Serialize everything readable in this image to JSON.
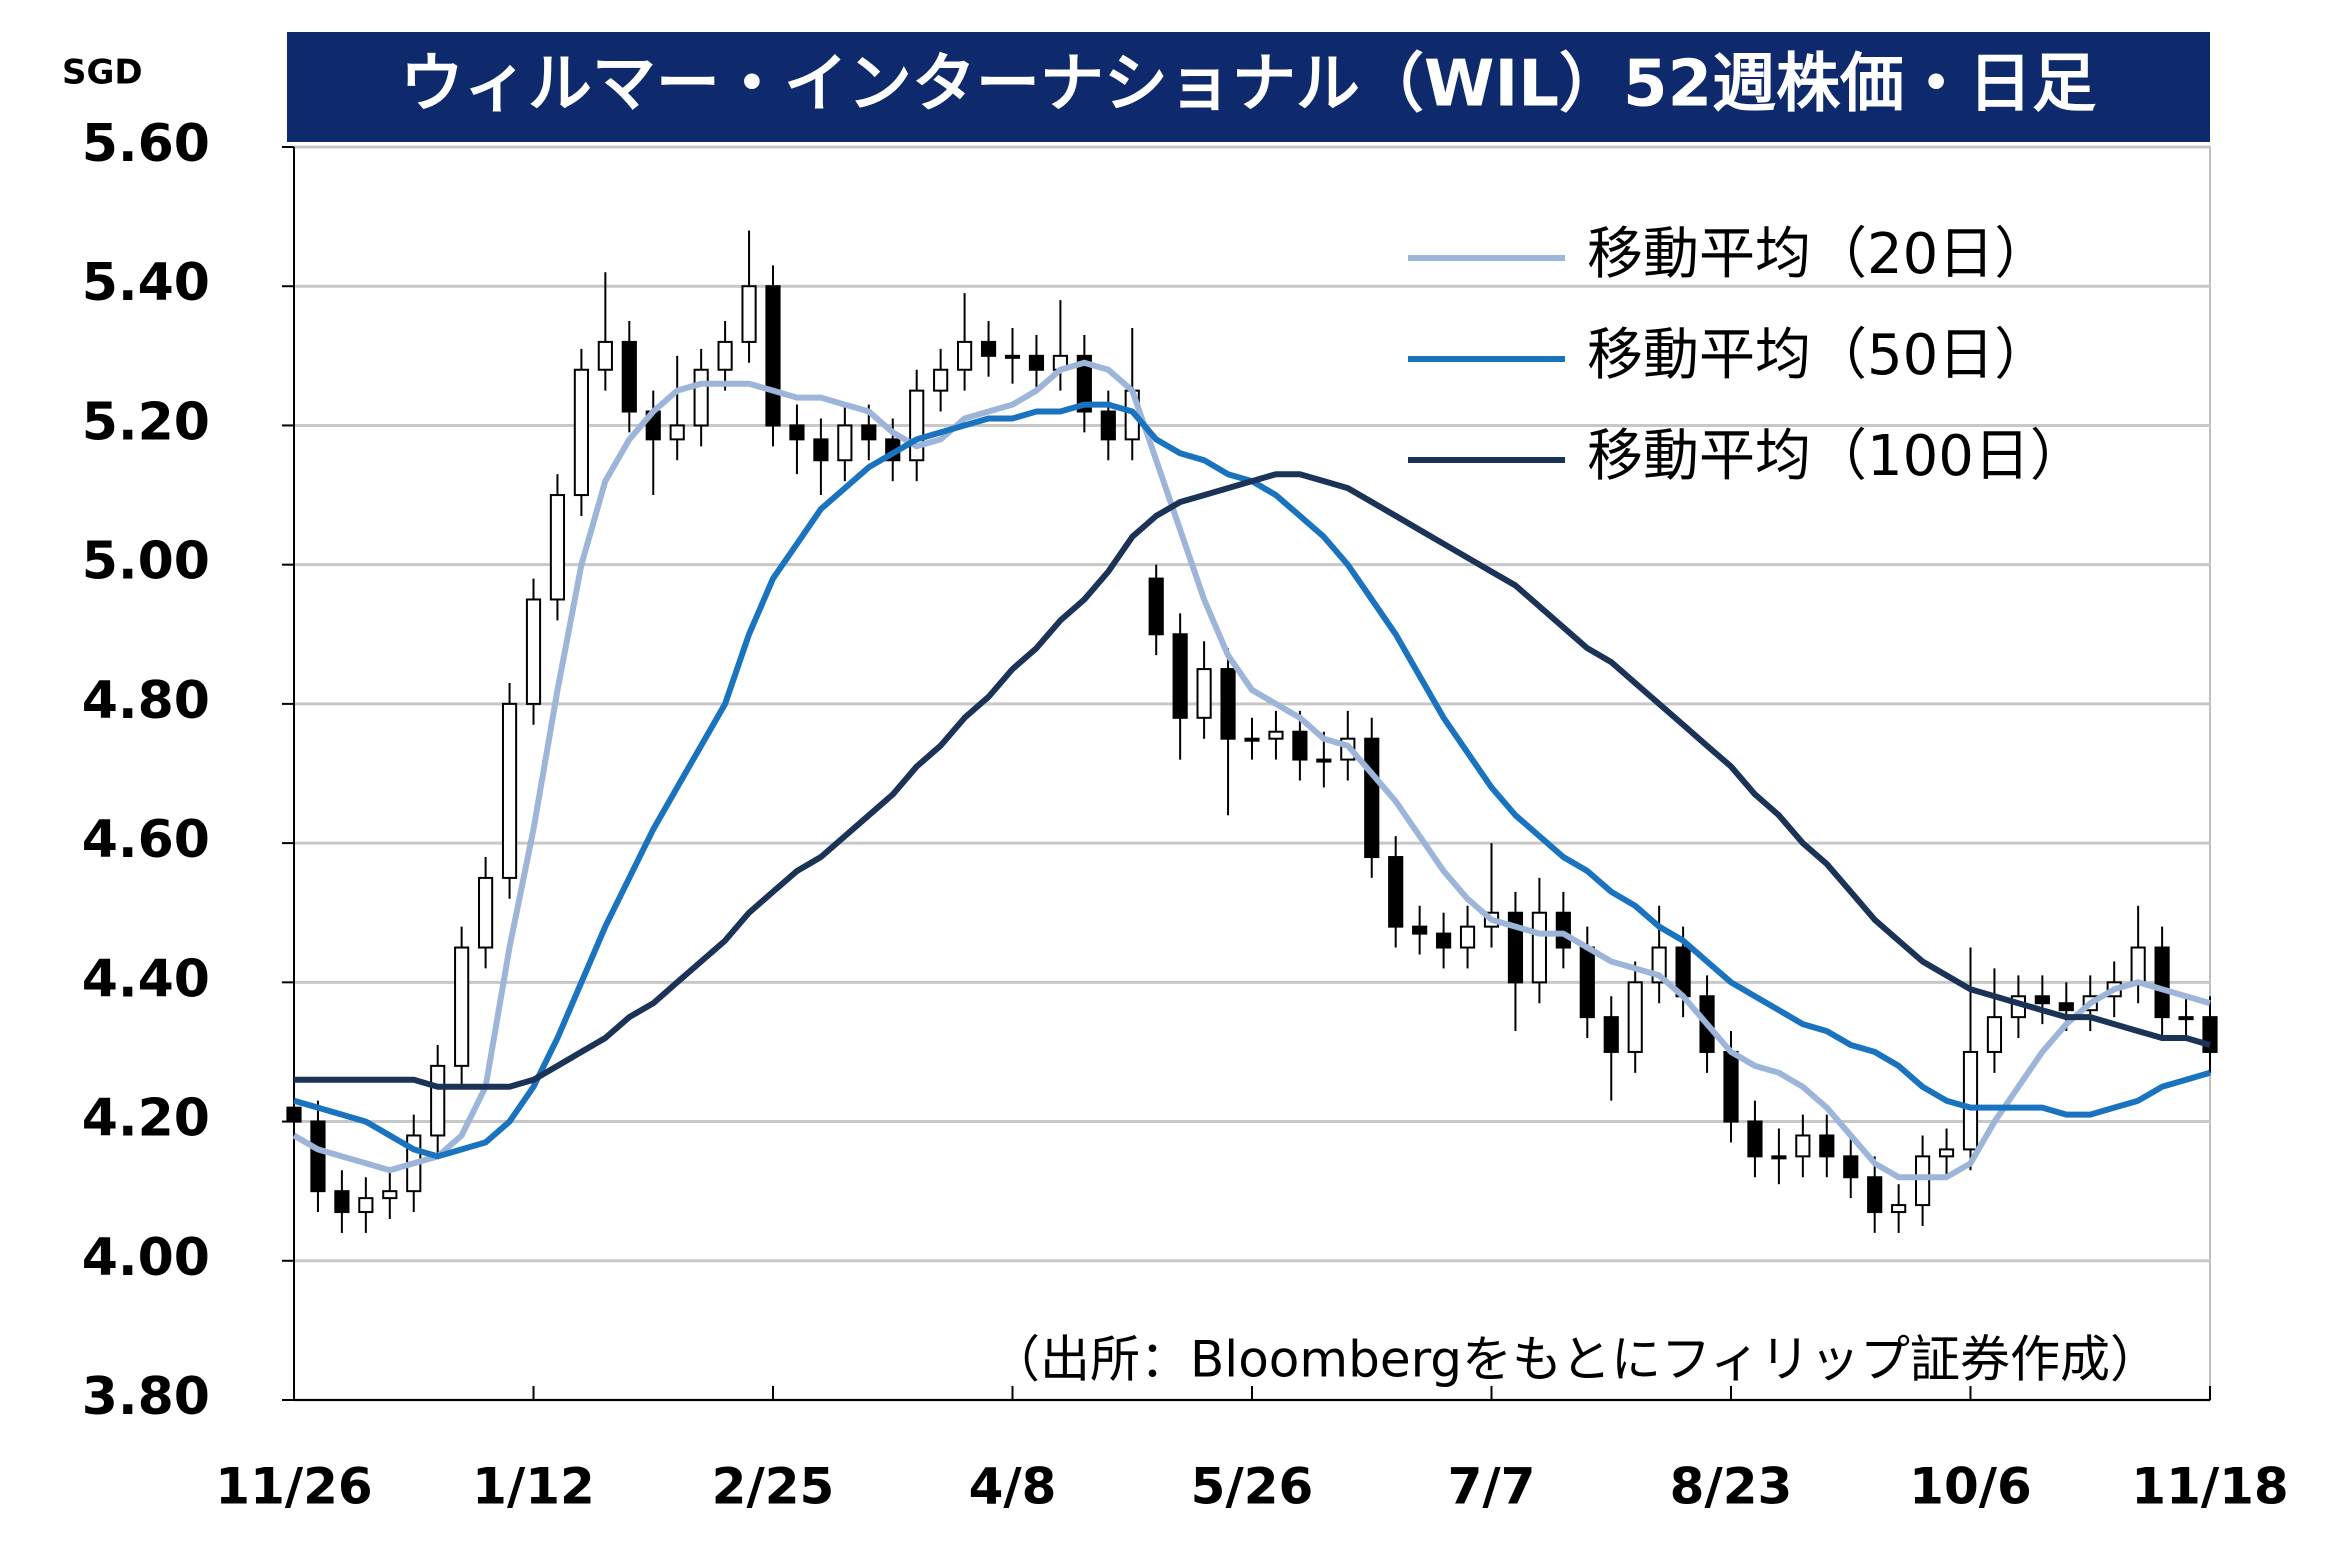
{
  "chart_data": {
    "type": "candlestick",
    "title": "ウィルマー・インターナショナル（WIL）52週株価・日足",
    "y_unit": "SGD",
    "note": "（出所：Bloombergをもとにフィリップ証券作成）",
    "legend": "upper right",
    "grid": true,
    "up_color": "#ffffff",
    "down_color": "#000000",
    "ylim": [
      3.8,
      5.6
    ],
    "yticks": [
      {
        "value": 3.8,
        "label": "3.80"
      },
      {
        "value": 4.0,
        "label": "4.00"
      },
      {
        "value": 4.2,
        "label": "4.20"
      },
      {
        "value": 4.4,
        "label": "4.40"
      },
      {
        "value": 4.6,
        "label": "4.60"
      },
      {
        "value": 4.8,
        "label": "4.80"
      },
      {
        "value": 5.0,
        "label": "5.00"
      },
      {
        "value": 5.2,
        "label": "5.20"
      },
      {
        "value": 5.4,
        "label": "5.40"
      },
      {
        "value": 5.6,
        "label": "5.60"
      }
    ],
    "categories": [
      "11/26",
      null,
      null,
      null,
      null,
      null,
      null,
      null,
      null,
      null,
      "1/12",
      null,
      null,
      null,
      null,
      null,
      null,
      null,
      null,
      null,
      "2/25",
      null,
      null,
      null,
      null,
      null,
      null,
      null,
      null,
      null,
      "4/8",
      null,
      null,
      null,
      null,
      null,
      null,
      null,
      null,
      null,
      "5/26",
      null,
      null,
      null,
      null,
      null,
      null,
      null,
      null,
      null,
      "7/7",
      null,
      null,
      null,
      null,
      null,
      null,
      null,
      null,
      null,
      "8/23",
      null,
      null,
      null,
      null,
      null,
      null,
      null,
      null,
      null,
      "10/6",
      null,
      null,
      null,
      null,
      null,
      null,
      null,
      null,
      null,
      "11/18"
    ],
    "open": [
      4.22,
      4.2,
      4.1,
      4.07,
      4.09,
      4.1,
      4.18,
      4.28,
      4.45,
      4.55,
      4.8,
      4.95,
      5.1,
      5.28,
      5.32,
      5.22,
      5.18,
      5.2,
      5.28,
      5.32,
      5.4,
      5.2,
      5.18,
      5.15,
      5.2,
      5.18,
      5.15,
      5.25,
      5.28,
      5.32,
      5.3,
      5.3,
      5.28,
      5.3,
      5.22,
      5.18,
      4.98,
      4.9,
      4.78,
      4.85,
      4.75,
      4.75,
      4.76,
      4.72,
      4.72,
      4.75,
      4.58,
      4.48,
      4.47,
      4.45,
      4.48,
      4.5,
      4.4,
      4.5,
      4.45,
      4.35,
      4.3,
      4.4,
      4.45,
      4.38,
      4.3,
      4.2,
      4.15,
      4.15,
      4.18,
      4.15,
      4.12,
      4.07,
      4.08,
      4.15,
      4.16,
      4.3,
      4.35,
      4.38,
      4.37,
      4.36,
      4.38,
      4.4,
      4.45,
      4.35,
      4.35
    ],
    "high": [
      4.25,
      4.23,
      4.13,
      4.12,
      4.13,
      4.21,
      4.31,
      4.48,
      4.58,
      4.83,
      4.98,
      5.13,
      5.31,
      5.42,
      5.35,
      5.25,
      5.3,
      5.31,
      5.35,
      5.48,
      5.43,
      5.23,
      5.21,
      5.23,
      5.23,
      5.21,
      5.28,
      5.31,
      5.39,
      5.35,
      5.34,
      5.33,
      5.38,
      5.33,
      5.25,
      5.34,
      5.0,
      4.93,
      4.89,
      4.88,
      4.78,
      4.79,
      4.79,
      4.76,
      4.79,
      4.78,
      4.61,
      4.51,
      4.5,
      4.51,
      4.6,
      4.53,
      4.55,
      4.53,
      4.48,
      4.38,
      4.43,
      4.51,
      4.48,
      4.41,
      4.33,
      4.23,
      4.19,
      4.21,
      4.21,
      4.18,
      4.15,
      4.11,
      4.18,
      4.19,
      4.45,
      4.42,
      4.41,
      4.41,
      4.4,
      4.41,
      4.43,
      4.51,
      4.48,
      4.38,
      4.38
    ],
    "low": [
      4.17,
      4.07,
      4.04,
      4.04,
      4.06,
      4.07,
      4.15,
      4.25,
      4.42,
      4.52,
      4.77,
      4.92,
      5.07,
      5.25,
      5.19,
      5.1,
      5.15,
      5.17,
      5.25,
      5.29,
      5.17,
      5.13,
      5.1,
      5.12,
      5.15,
      5.12,
      5.12,
      5.22,
      5.25,
      5.27,
      5.26,
      5.25,
      5.25,
      5.19,
      5.15,
      5.15,
      4.87,
      4.72,
      4.75,
      4.64,
      4.72,
      4.72,
      4.69,
      4.68,
      4.69,
      4.55,
      4.45,
      4.44,
      4.42,
      4.42,
      4.45,
      4.33,
      4.37,
      4.42,
      4.32,
      4.23,
      4.27,
      4.37,
      4.35,
      4.27,
      4.17,
      4.12,
      4.11,
      4.12,
      4.12,
      4.09,
      4.04,
      4.04,
      4.05,
      4.12,
      4.13,
      4.27,
      4.32,
      4.34,
      4.33,
      4.33,
      4.35,
      4.37,
      4.32,
      4.32,
      4.27
    ],
    "close": [
      4.2,
      4.1,
      4.07,
      4.09,
      4.1,
      4.18,
      4.28,
      4.45,
      4.55,
      4.8,
      4.95,
      5.1,
      5.28,
      5.32,
      5.22,
      5.18,
      5.2,
      5.28,
      5.32,
      5.4,
      5.2,
      5.18,
      5.15,
      5.2,
      5.18,
      5.15,
      5.25,
      5.28,
      5.32,
      5.3,
      5.3,
      5.28,
      5.3,
      5.22,
      5.18,
      5.25,
      4.9,
      4.78,
      4.85,
      4.75,
      4.75,
      4.76,
      4.72,
      4.72,
      4.75,
      4.58,
      4.48,
      4.47,
      4.45,
      4.48,
      4.5,
      4.4,
      4.5,
      4.45,
      4.35,
      4.3,
      4.4,
      4.45,
      4.38,
      4.3,
      4.2,
      4.15,
      4.15,
      4.18,
      4.15,
      4.12,
      4.07,
      4.08,
      4.15,
      4.16,
      4.3,
      4.35,
      4.38,
      4.37,
      4.36,
      4.38,
      4.4,
      4.45,
      4.35,
      4.35,
      4.3
    ],
    "series": [
      {
        "name": "移動平均（20日）",
        "color": "#9db5d8",
        "values": [
          4.18,
          4.16,
          4.15,
          4.14,
          4.13,
          4.14,
          4.15,
          4.18,
          4.25,
          4.45,
          4.62,
          4.82,
          5.0,
          5.12,
          5.18,
          5.22,
          5.25,
          5.26,
          5.26,
          5.26,
          5.25,
          5.24,
          5.24,
          5.23,
          5.22,
          5.19,
          5.17,
          5.18,
          5.21,
          5.22,
          5.23,
          5.25,
          5.28,
          5.29,
          5.28,
          5.25,
          5.15,
          5.05,
          4.95,
          4.87,
          4.82,
          4.8,
          4.78,
          4.75,
          4.74,
          4.7,
          4.66,
          4.61,
          4.56,
          4.52,
          4.49,
          4.48,
          4.47,
          4.47,
          4.45,
          4.43,
          4.42,
          4.41,
          4.38,
          4.34,
          4.3,
          4.28,
          4.27,
          4.25,
          4.22,
          4.18,
          4.14,
          4.12,
          4.12,
          4.12,
          4.14,
          4.2,
          4.25,
          4.3,
          4.34,
          4.37,
          4.39,
          4.4,
          4.39,
          4.38,
          4.37
        ]
      },
      {
        "name": "移動平均（50日）",
        "color": "#1a73bf",
        "values": [
          4.23,
          4.22,
          4.21,
          4.2,
          4.18,
          4.16,
          4.15,
          4.16,
          4.17,
          4.2,
          4.25,
          4.32,
          4.4,
          4.48,
          4.55,
          4.62,
          4.68,
          4.74,
          4.8,
          4.9,
          4.98,
          5.03,
          5.08,
          5.11,
          5.14,
          5.16,
          5.18,
          5.19,
          5.2,
          5.21,
          5.21,
          5.22,
          5.22,
          5.23,
          5.23,
          5.22,
          5.18,
          5.16,
          5.15,
          5.13,
          5.12,
          5.1,
          5.07,
          5.04,
          5.0,
          4.95,
          4.9,
          4.84,
          4.78,
          4.73,
          4.68,
          4.64,
          4.61,
          4.58,
          4.56,
          4.53,
          4.51,
          4.48,
          4.46,
          4.43,
          4.4,
          4.38,
          4.36,
          4.34,
          4.33,
          4.31,
          4.3,
          4.28,
          4.25,
          4.23,
          4.22,
          4.22,
          4.22,
          4.22,
          4.21,
          4.21,
          4.22,
          4.23,
          4.25,
          4.26,
          4.27
        ]
      },
      {
        "name": "移動平均（100日）",
        "color": "#1c3358",
        "values": [
          4.26,
          4.26,
          4.26,
          4.26,
          4.26,
          4.26,
          4.25,
          4.25,
          4.25,
          4.25,
          4.26,
          4.28,
          4.3,
          4.32,
          4.35,
          4.37,
          4.4,
          4.43,
          4.46,
          4.5,
          4.53,
          4.56,
          4.58,
          4.61,
          4.64,
          4.67,
          4.71,
          4.74,
          4.78,
          4.81,
          4.85,
          4.88,
          4.92,
          4.95,
          4.99,
          5.04,
          5.07,
          5.09,
          5.1,
          5.11,
          5.12,
          5.13,
          5.13,
          5.12,
          5.11,
          5.09,
          5.07,
          5.05,
          5.03,
          5.01,
          4.99,
          4.97,
          4.94,
          4.91,
          4.88,
          4.86,
          4.83,
          4.8,
          4.77,
          4.74,
          4.71,
          4.67,
          4.64,
          4.6,
          4.57,
          4.53,
          4.49,
          4.46,
          4.43,
          4.41,
          4.39,
          4.38,
          4.37,
          4.36,
          4.35,
          4.35,
          4.34,
          4.33,
          4.32,
          4.32,
          4.31
        ]
      }
    ]
  }
}
